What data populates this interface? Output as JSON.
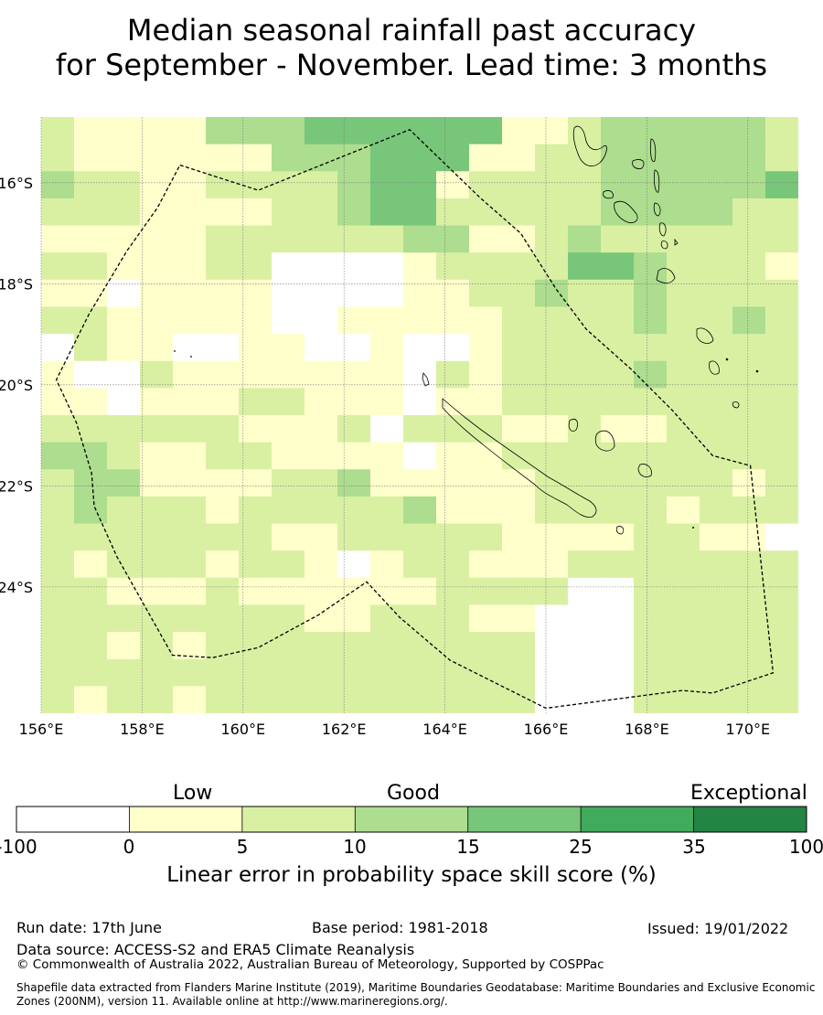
{
  "title": {
    "line1": "Median seasonal rainfall past accuracy",
    "line2": "for September - November. Lead time: 3 months"
  },
  "map": {
    "lon_range": [
      156,
      171
    ],
    "lat_range": [
      -26.5,
      -14.7
    ],
    "lon_ticks": [
      "156°E",
      "158°E",
      "160°E",
      "162°E",
      "164°E",
      "166°E",
      "168°E",
      "170°E"
    ],
    "lat_ticks": [
      "16°S",
      "18°S",
      "20°S",
      "22°S",
      "24°S"
    ],
    "grid": true,
    "class_colors": [
      "#ffffff",
      "#ffffcc",
      "#d9f0a3",
      "#addd8e",
      "#78c679",
      "#41ab5d",
      "#238443"
    ],
    "cell_classes": [
      "21111333444444112333332",
      "21111113334441122333332",
      "32211222234412222333334",
      "22211112234422222333322",
      "11111222222331123222222",
      "22111220000122224432221",
      "11011110000112232232222",
      "22111110011111222232232",
      "02110011001001222222222",
      "10021111111021222232222",
      "11011122111011222222222",
      "22222211120222112112222",
      "33211221111011222222222",
      "23311112231111122222212",
      "23222122222311122221222",
      "22222221122222111122110",
      "21222122101221112222222",
      "22111211111122220022222",
      "22222222112221100022222",
      "22121222222222200022222",
      "22222222222222200022222",
      "21221222222222200022222"
    ],
    "eez_boundary": [
      [
        158.75,
        -15.65
      ],
      [
        160.3,
        -16.15
      ],
      [
        163.3,
        -14.95
      ],
      [
        164.7,
        -16.3
      ],
      [
        165.5,
        -17.0
      ],
      [
        166.2,
        -18.1
      ],
      [
        166.8,
        -18.9
      ],
      [
        167.7,
        -19.7
      ],
      [
        168.5,
        -20.5
      ],
      [
        169.3,
        -21.4
      ],
      [
        170.05,
        -21.6
      ],
      [
        170.5,
        -25.7
      ],
      [
        169.3,
        -26.1
      ],
      [
        168.7,
        -26.05
      ],
      [
        166,
        -26.4
      ],
      [
        164.1,
        -25.45
      ],
      [
        163.1,
        -24.6
      ],
      [
        162.45,
        -23.9
      ],
      [
        161.5,
        -24.55
      ],
      [
        160.3,
        -25.2
      ],
      [
        159.4,
        -25.4
      ],
      [
        158.6,
        -25.35
      ],
      [
        157.5,
        -23.4
      ],
      [
        157.05,
        -22.4
      ],
      [
        157.0,
        -21.75
      ],
      [
        156.7,
        -20.75
      ],
      [
        156.3,
        -19.9
      ],
      [
        156.95,
        -18.6
      ],
      [
        157.7,
        -17.35
      ],
      [
        158.3,
        -16.5
      ]
    ]
  },
  "colorbar": {
    "categories": [
      {
        "label": "Low",
        "from_class": 1
      },
      {
        "label": "Good",
        "from_class": 3
      },
      {
        "label": "Exceptional",
        "from_class": 6
      }
    ],
    "boundaries": [
      "-100",
      "0",
      "5",
      "10",
      "15",
      "25",
      "35",
      "100"
    ],
    "axis_label": "Linear error in probability space skill score (%)"
  },
  "footer": {
    "run_date": "Run date: 17th June",
    "base_period": "Base period: 1981-2018",
    "issued": "Issued: 19/01/2022",
    "data_source": "Data source: ACCESS-S2 and ERA5 Climate Reanalysis",
    "copyright": "© Commonwealth of Australia 2022, Australian Bureau of Meteorology, Supported by COSPPac",
    "shapefile": "Shapefile data extracted from Flanders Marine Institute (2019), Maritime Boundaries Geodatabase: Maritime Boundaries and Exclusive Economic Zones (200NM), version 11. Available online at http://www.marineregions.org/."
  }
}
